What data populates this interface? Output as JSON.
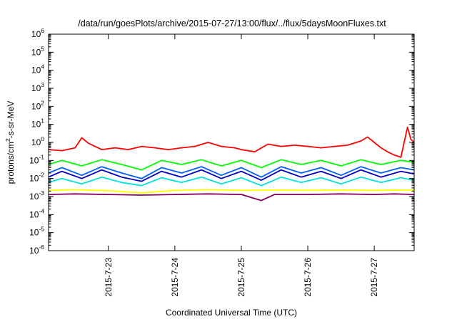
{
  "chart_data": {
    "type": "line",
    "title": "/data/run/goesPlots/archive/2015-07-27/13:00/flux/../flux/5daysMoonFluxes.txt",
    "xlabel": "Coordinated Universal Time (UTC)",
    "ylabel": {
      "prefix": "protons/cm",
      "sup": "2",
      "suffix": "-s-sr-MeV"
    },
    "yscale": "log",
    "ylim_exp": [
      -6,
      6
    ],
    "yticks": [
      {
        "base": "10",
        "exp": "6"
      },
      {
        "base": "10",
        "exp": "5"
      },
      {
        "base": "10",
        "exp": "4"
      },
      {
        "base": "10",
        "exp": "3"
      },
      {
        "base": "10",
        "exp": "2"
      },
      {
        "base": "10",
        "exp": "1"
      },
      {
        "base": "10",
        "exp": "0"
      },
      {
        "base": "10",
        "exp": "-1"
      },
      {
        "base": "10",
        "exp": "-2"
      },
      {
        "base": "10",
        "exp": "-3"
      },
      {
        "base": "10",
        "exp": "-4"
      },
      {
        "base": "10",
        "exp": "-5"
      },
      {
        "base": "10",
        "exp": "-6"
      }
    ],
    "xlim_days": [
      22.1,
      27.6
    ],
    "xticks": [
      {
        "day": 23,
        "label": "2015-7-23"
      },
      {
        "day": 24,
        "label": "2015-7-24"
      },
      {
        "day": 25,
        "label": "2015-7-25"
      },
      {
        "day": 26,
        "label": "2015-7-26"
      },
      {
        "day": 27,
        "label": "2015-7-27"
      }
    ],
    "grid": false,
    "legend": "none",
    "series": [
      {
        "color": "#800060",
        "points": [
          [
            22.1,
            0.0013
          ],
          [
            22.5,
            0.0014
          ],
          [
            23.0,
            0.0013
          ],
          [
            23.5,
            0.0012
          ],
          [
            24.0,
            0.0013
          ],
          [
            24.5,
            0.0014
          ],
          [
            25.0,
            0.0013
          ],
          [
            25.3,
            0.0006
          ],
          [
            25.5,
            0.0013
          ],
          [
            26.0,
            0.0013
          ],
          [
            26.5,
            0.0014
          ],
          [
            27.0,
            0.0013
          ],
          [
            27.3,
            0.0014
          ],
          [
            27.6,
            0.0013
          ]
        ]
      },
      {
        "color": "#ffff00",
        "points": [
          [
            22.1,
            0.0022
          ],
          [
            22.5,
            0.0024
          ],
          [
            23.0,
            0.0021
          ],
          [
            23.5,
            0.0016
          ],
          [
            24.0,
            0.0022
          ],
          [
            24.5,
            0.0024
          ],
          [
            25.0,
            0.0022
          ],
          [
            25.5,
            0.0023
          ],
          [
            26.0,
            0.0022
          ],
          [
            26.5,
            0.0023
          ],
          [
            27.0,
            0.0022
          ],
          [
            27.6,
            0.0023
          ]
        ]
      },
      {
        "color": "#00e0e0",
        "points": [
          [
            22.1,
            0.006
          ],
          [
            22.3,
            0.01
          ],
          [
            22.6,
            0.005
          ],
          [
            22.9,
            0.012
          ],
          [
            23.2,
            0.006
          ],
          [
            23.5,
            0.004
          ],
          [
            23.8,
            0.011
          ],
          [
            24.1,
            0.006
          ],
          [
            24.4,
            0.012
          ],
          [
            24.7,
            0.005
          ],
          [
            25.0,
            0.011
          ],
          [
            25.3,
            0.004
          ],
          [
            25.6,
            0.012
          ],
          [
            25.9,
            0.006
          ],
          [
            26.2,
            0.011
          ],
          [
            26.5,
            0.005
          ],
          [
            26.8,
            0.012
          ],
          [
            27.1,
            0.006
          ],
          [
            27.4,
            0.011
          ],
          [
            27.6,
            0.008
          ]
        ]
      },
      {
        "color": "#0060ff",
        "points": [
          [
            22.1,
            0.02
          ],
          [
            22.3,
            0.04
          ],
          [
            22.6,
            0.015
          ],
          [
            22.9,
            0.045
          ],
          [
            23.2,
            0.02
          ],
          [
            23.5,
            0.01
          ],
          [
            23.8,
            0.04
          ],
          [
            24.1,
            0.02
          ],
          [
            24.4,
            0.045
          ],
          [
            24.7,
            0.015
          ],
          [
            25.0,
            0.04
          ],
          [
            25.3,
            0.012
          ],
          [
            25.6,
            0.045
          ],
          [
            25.9,
            0.02
          ],
          [
            26.2,
            0.04
          ],
          [
            26.5,
            0.015
          ],
          [
            26.8,
            0.045
          ],
          [
            27.1,
            0.02
          ],
          [
            27.4,
            0.04
          ],
          [
            27.6,
            0.03
          ]
        ]
      },
      {
        "color": "#0000c0",
        "points": [
          [
            22.1,
            0.012
          ],
          [
            22.3,
            0.025
          ],
          [
            22.6,
            0.01
          ],
          [
            22.9,
            0.03
          ],
          [
            23.2,
            0.012
          ],
          [
            23.5,
            0.007
          ],
          [
            23.8,
            0.025
          ],
          [
            24.1,
            0.012
          ],
          [
            24.4,
            0.03
          ],
          [
            24.7,
            0.01
          ],
          [
            25.0,
            0.025
          ],
          [
            25.3,
            0.008
          ],
          [
            25.6,
            0.03
          ],
          [
            25.9,
            0.012
          ],
          [
            26.2,
            0.025
          ],
          [
            26.5,
            0.01
          ],
          [
            26.8,
            0.03
          ],
          [
            27.1,
            0.012
          ],
          [
            27.4,
            0.025
          ],
          [
            27.6,
            0.018
          ]
        ]
      },
      {
        "color": "#00ff00",
        "points": [
          [
            22.1,
            0.06
          ],
          [
            22.3,
            0.1
          ],
          [
            22.6,
            0.05
          ],
          [
            22.9,
            0.11
          ],
          [
            23.2,
            0.06
          ],
          [
            23.5,
            0.03
          ],
          [
            23.8,
            0.1
          ],
          [
            24.1,
            0.06
          ],
          [
            24.4,
            0.11
          ],
          [
            24.7,
            0.05
          ],
          [
            25.0,
            0.1
          ],
          [
            25.3,
            0.04
          ],
          [
            25.6,
            0.11
          ],
          [
            25.9,
            0.06
          ],
          [
            26.2,
            0.1
          ],
          [
            26.5,
            0.05
          ],
          [
            26.8,
            0.11
          ],
          [
            27.1,
            0.06
          ],
          [
            27.4,
            0.1
          ],
          [
            27.6,
            0.08
          ]
        ]
      },
      {
        "color": "#ff0000",
        "points": [
          [
            22.1,
            0.4
          ],
          [
            22.3,
            0.35
          ],
          [
            22.5,
            0.5
          ],
          [
            22.6,
            1.8
          ],
          [
            22.7,
            0.9
          ],
          [
            22.9,
            0.4
          ],
          [
            23.1,
            0.5
          ],
          [
            23.3,
            0.4
          ],
          [
            23.5,
            0.6
          ],
          [
            23.7,
            0.5
          ],
          [
            23.9,
            0.4
          ],
          [
            24.1,
            0.5
          ],
          [
            24.3,
            0.6
          ],
          [
            24.5,
            1.0
          ],
          [
            24.7,
            0.6
          ],
          [
            24.9,
            0.5
          ],
          [
            25.0,
            0.4
          ],
          [
            25.2,
            0.3
          ],
          [
            25.4,
            0.8
          ],
          [
            25.6,
            0.6
          ],
          [
            25.8,
            0.7
          ],
          [
            26.0,
            0.6
          ],
          [
            26.2,
            0.5
          ],
          [
            26.4,
            0.6
          ],
          [
            26.6,
            0.7
          ],
          [
            26.8,
            1.2
          ],
          [
            26.9,
            2.0
          ],
          [
            27.0,
            1.0
          ],
          [
            27.1,
            0.5
          ],
          [
            27.2,
            0.3
          ],
          [
            27.3,
            0.2
          ],
          [
            27.4,
            0.15
          ],
          [
            27.45,
            1.0
          ],
          [
            27.5,
            7.0
          ],
          [
            27.55,
            1.5
          ],
          [
            27.6,
            1.0
          ]
        ]
      }
    ]
  }
}
